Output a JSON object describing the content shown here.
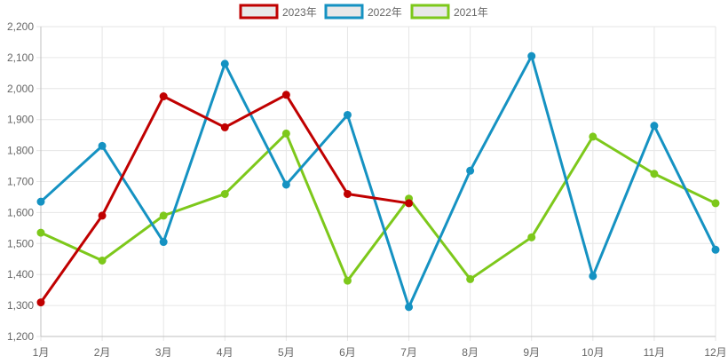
{
  "chart_data": {
    "type": "line",
    "title": "",
    "xlabel": "",
    "ylabel": "",
    "ylim": [
      1200,
      2200
    ],
    "y_ticks": [
      1200,
      1300,
      1400,
      1500,
      1600,
      1700,
      1800,
      1900,
      2000,
      2100,
      2200
    ],
    "y_tick_labels": [
      "1,200",
      "1,300",
      "1,400",
      "1,500",
      "1,600",
      "1,700",
      "1,800",
      "1,900",
      "2,000",
      "2,100",
      "2,200"
    ],
    "categories": [
      "1月",
      "2月",
      "3月",
      "4月",
      "5月",
      "6月",
      "7月",
      "8月",
      "9月",
      "10月",
      "11月",
      "12月"
    ],
    "grid": true,
    "legend_position": "top-center",
    "series": [
      {
        "name": "2023年",
        "color": "#c00000",
        "values": [
          1310,
          1590,
          1975,
          1875,
          1980,
          1660,
          1630,
          null,
          null,
          null,
          null,
          null
        ]
      },
      {
        "name": "2022年",
        "color": "#1592c2",
        "values": [
          1635,
          1815,
          1505,
          2080,
          1690,
          1915,
          1295,
          1735,
          2105,
          1395,
          1880,
          1480
        ]
      },
      {
        "name": "2021年",
        "color": "#7dc81b",
        "values": [
          1535,
          1445,
          1590,
          1660,
          1855,
          1380,
          1645,
          1385,
          1520,
          1845,
          1725,
          1630
        ]
      }
    ]
  }
}
